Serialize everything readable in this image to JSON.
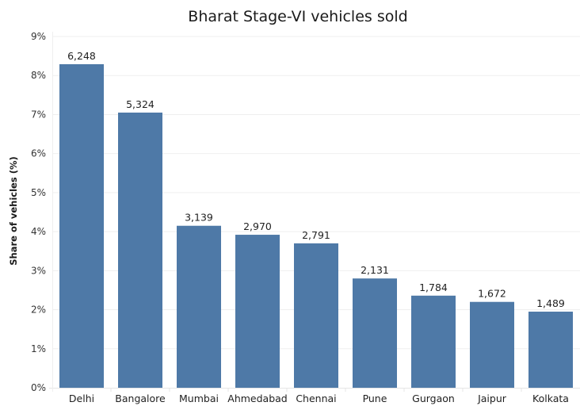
{
  "chart_data": {
    "type": "bar",
    "title": "Bharat Stage-VI vehicles sold",
    "xlabel": "",
    "ylabel": "Share of vehicles (%)",
    "ylim": [
      0,
      9
    ],
    "yticks": [
      0,
      1,
      2,
      3,
      4,
      5,
      6,
      7,
      8,
      9
    ],
    "ytick_labels": [
      "0%",
      "1%",
      "2%",
      "3%",
      "4%",
      "5%",
      "6%",
      "7%",
      "8%",
      "9%"
    ],
    "grid": true,
    "legend": "none",
    "categories": [
      "Delhi",
      "Bangalore",
      "Mumbai",
      "Ahmedabad",
      "Chennai",
      "Pune",
      "Gurgaon",
      "Jaipur",
      "Kolkata"
    ],
    "values": [
      8.29,
      7.05,
      4.15,
      3.92,
      3.7,
      2.8,
      2.36,
      2.2,
      1.95
    ],
    "data_labels": [
      "6,248",
      "5,324",
      "3,139",
      "2,970",
      "2,791",
      "2,131",
      "1,784",
      "1,672",
      "1,489"
    ],
    "colors": {
      "bar": "#4e79a7",
      "grid": "#efefef",
      "axis": "#e6e6e6"
    }
  }
}
